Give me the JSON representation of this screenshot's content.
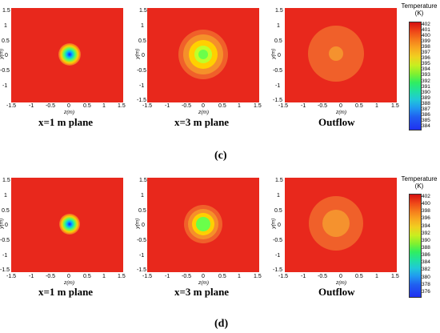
{
  "figure": {
    "subfigure_c_label": "(c)",
    "subfigure_d_label": "(d)",
    "panel_titles": [
      "x=1 m plane",
      "x=3 m plane",
      "Outflow"
    ],
    "axis": {
      "x_label": "z(m)",
      "y_label": "y(m)",
      "x_ticks": [
        "-1.5",
        "-1",
        "-0.5",
        "0",
        "0.5",
        "1",
        "1.5"
      ],
      "y_ticks": [
        "1.5",
        "1",
        "0.5",
        "0",
        "-0.5",
        "-1",
        "-1.5"
      ]
    },
    "colorbar_c": {
      "title_line1": "Temperature",
      "title_line2": "(K)",
      "ticks": [
        "402",
        "401",
        "400",
        "399",
        "398",
        "397",
        "396",
        "395",
        "394",
        "393",
        "392",
        "391",
        "390",
        "389",
        "388",
        "387",
        "386",
        "385",
        "384"
      ]
    },
    "colorbar_d": {
      "title_line1": "Temperature",
      "title_line2": "(K)",
      "ticks": [
        "402",
        "400",
        "398",
        "396",
        "394",
        "392",
        "390",
        "388",
        "386",
        "384",
        "382",
        "380",
        "378",
        "376"
      ]
    },
    "colors": {
      "background_field": "#e8281c",
      "outflow_ring": "#f0602a",
      "outflow_center": "#f5922e"
    }
  }
}
